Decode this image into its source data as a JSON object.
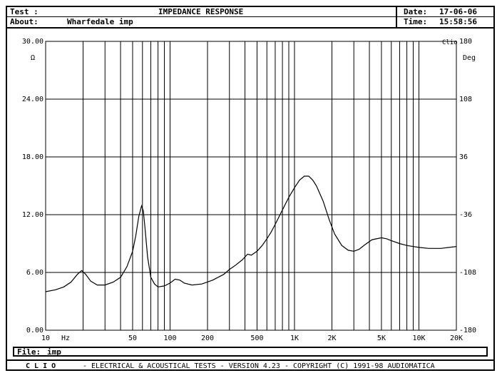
{
  "header": {
    "test_label": "Test :",
    "test_title": "IMPEDANCE RESPONSE",
    "about_label": "About:",
    "about_value": "Wharfedale imp",
    "date_label": "Date:",
    "date_value": "17-06-06",
    "time_label": "Time:",
    "time_value": "15:58:56"
  },
  "file_bar": {
    "label": "File:",
    "value": "imp"
  },
  "footer": {
    "brand": "C L I O",
    "text": "- ELECTRICAL & ACOUSTICAL TESTS - VERSION 4.23 - COPYRIGHT (C) 1991-98 AUDIOMATICA"
  },
  "chart_data": {
    "type": "line",
    "title": "IMPEDANCE RESPONSE",
    "corner_label": "Clio",
    "x_scale": "log",
    "xlim": [
      10,
      20000
    ],
    "x_unit": "Hz",
    "x_ticks": [
      {
        "value": 10,
        "label": "10"
      },
      {
        "value": 50,
        "label": "50"
      },
      {
        "value": 100,
        "label": "100"
      },
      {
        "value": 200,
        "label": "200"
      },
      {
        "value": 500,
        "label": "500"
      },
      {
        "value": 1000,
        "label": "1K"
      },
      {
        "value": 2000,
        "label": "2K"
      },
      {
        "value": 5000,
        "label": "5K"
      },
      {
        "value": 10000,
        "label": "10K"
      },
      {
        "value": 20000,
        "label": "20K"
      }
    ],
    "y_left": {
      "unit": "Ω",
      "ylim": [
        0,
        30
      ],
      "ticks": [
        {
          "value": 0,
          "label": "0.00"
        },
        {
          "value": 6,
          "label": "6.00"
        },
        {
          "value": 12,
          "label": "12.00"
        },
        {
          "value": 18,
          "label": "18.00"
        },
        {
          "value": 24,
          "label": "24.00"
        },
        {
          "value": 30,
          "label": "30.00"
        }
      ]
    },
    "y_right": {
      "unit": "Deg",
      "ylim": [
        -180,
        180
      ],
      "ticks": [
        {
          "value": 180,
          "label": "180"
        },
        {
          "value": 108,
          "label": "108"
        },
        {
          "value": 36,
          "label": "36"
        },
        {
          "value": -36,
          "label": "-36"
        },
        {
          "value": -108,
          "label": "-108"
        },
        {
          "value": -180,
          "label": "-180"
        }
      ]
    },
    "grid": true,
    "series": [
      {
        "color": "#000000",
        "x": [
          10,
          12,
          14,
          16,
          18,
          19.5,
          21,
          23,
          26,
          30,
          35,
          40,
          45,
          50,
          53,
          56,
          59,
          61,
          63,
          66,
          70,
          75,
          80,
          90,
          100,
          110,
          120,
          130,
          150,
          180,
          220,
          270,
          300,
          340,
          380,
          420,
          450,
          500,
          550,
          600,
          650,
          700,
          800,
          900,
          1000,
          1100,
          1200,
          1300,
          1400,
          1500,
          1700,
          1900,
          2100,
          2400,
          2700,
          3000,
          3300,
          3700,
          4200,
          5000,
          5500,
          6000,
          7000,
          8000,
          10000,
          12000,
          15000,
          20000
        ],
        "y": [
          4.0,
          4.2,
          4.5,
          5.0,
          5.8,
          6.2,
          5.8,
          5.1,
          4.7,
          4.7,
          5.0,
          5.5,
          6.6,
          8.2,
          9.8,
          11.8,
          12.9,
          12.4,
          10.5,
          7.6,
          5.5,
          4.8,
          4.5,
          4.6,
          4.9,
          5.3,
          5.2,
          4.9,
          4.7,
          4.8,
          5.2,
          5.8,
          6.3,
          6.8,
          7.3,
          7.9,
          7.8,
          8.2,
          8.8,
          9.5,
          10.2,
          11.0,
          12.5,
          13.8,
          14.8,
          15.6,
          16.0,
          16.0,
          15.6,
          15.0,
          13.4,
          11.5,
          10.0,
          8.8,
          8.3,
          8.2,
          8.4,
          8.9,
          9.4,
          9.6,
          9.5,
          9.3,
          9.0,
          8.8,
          8.6,
          8.5,
          8.5,
          8.7
        ]
      }
    ]
  }
}
